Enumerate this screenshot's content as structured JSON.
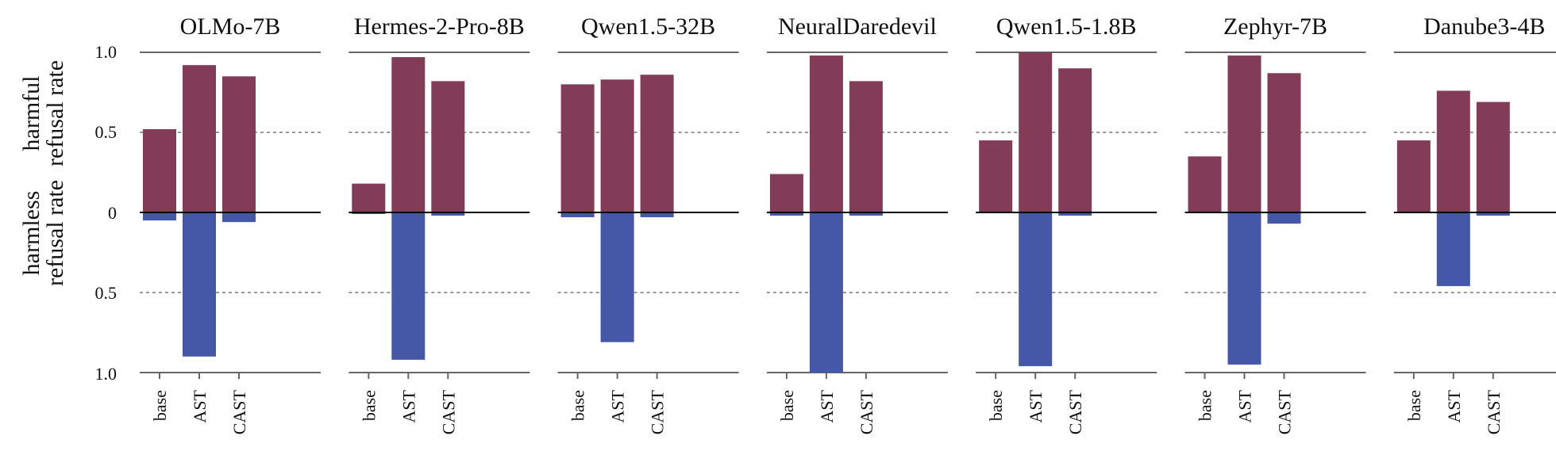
{
  "chart_data": {
    "type": "bar",
    "ylabel_top": [
      "harmful",
      "refusal rate"
    ],
    "ylabel_bottom": [
      "harmless",
      "refusal rate"
    ],
    "yticks_top": [
      "1.0",
      "0.5",
      "0"
    ],
    "yticks_bottom": [
      "0.5",
      "1.0"
    ],
    "ylim": [
      0,
      1.0
    ],
    "categories": [
      "base",
      "AST",
      "CAST"
    ],
    "grid": "dashed at 0.5 (top and bottom)",
    "colors": {
      "harmful": "#833c57",
      "harmless": "#4558a7"
    },
    "panels": [
      {
        "title": "OLMo-7B",
        "harmful": [
          0.52,
          0.92,
          0.85
        ],
        "harmless": [
          0.05,
          0.9,
          0.06
        ]
      },
      {
        "title": "Hermes-2-Pro-8B",
        "harmful": [
          0.18,
          0.97,
          0.82
        ],
        "harmless": [
          0.01,
          0.92,
          0.02
        ]
      },
      {
        "title": "Qwen1.5-32B",
        "harmful": [
          0.8,
          0.83,
          0.86
        ],
        "harmless": [
          0.03,
          0.81,
          0.03
        ]
      },
      {
        "title": "NeuralDaredevil",
        "harmful": [
          0.24,
          0.98,
          0.82
        ],
        "harmless": [
          0.02,
          1.0,
          0.02
        ]
      },
      {
        "title": "Qwen1.5-1.8B",
        "harmful": [
          0.45,
          1.0,
          0.9
        ],
        "harmless": [
          0.0,
          0.96,
          0.02
        ]
      },
      {
        "title": "Zephyr-7B",
        "harmful": [
          0.35,
          0.98,
          0.87
        ],
        "harmless": [
          0.0,
          0.95,
          0.07
        ]
      },
      {
        "title": "Danube3-4B",
        "harmful": [
          0.45,
          0.76,
          0.69
        ],
        "harmless": [
          0.0,
          0.46,
          0.02
        ]
      }
    ]
  }
}
